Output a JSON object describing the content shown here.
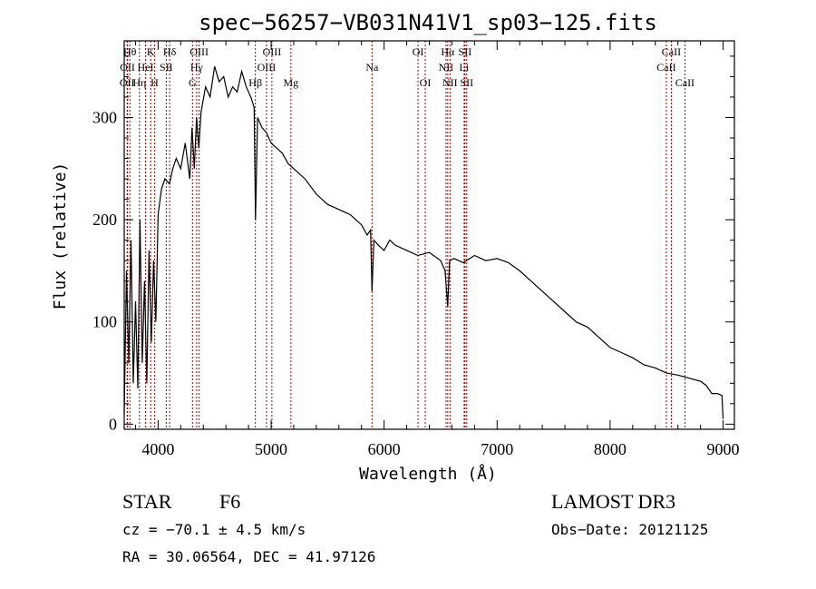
{
  "chart_data": {
    "type": "line",
    "title": "spec−56257−VB031N41V1_sp03−125.fits",
    "xlabel": "Wavelength (Å)",
    "ylabel": "Flux (relative)",
    "xlim": [
      3700,
      9100
    ],
    "ylim": [
      -5,
      375
    ],
    "x_ticks": [
      4000,
      5000,
      6000,
      7000,
      8000,
      9000
    ],
    "y_ticks": [
      0,
      100,
      200,
      300
    ],
    "series": [
      {
        "name": "spectrum",
        "x": [
          3700,
          3720,
          3740,
          3760,
          3780,
          3800,
          3820,
          3840,
          3860,
          3880,
          3900,
          3920,
          3940,
          3960,
          3980,
          4000,
          4030,
          4060,
          4100,
          4130,
          4160,
          4200,
          4240,
          4280,
          4300,
          4320,
          4340,
          4360,
          4380,
          4420,
          4460,
          4500,
          4540,
          4580,
          4620,
          4660,
          4700,
          4740,
          4780,
          4820,
          4850,
          4862,
          4880,
          4920,
          4960,
          5000,
          5050,
          5100,
          5150,
          5200,
          5300,
          5400,
          5500,
          5600,
          5700,
          5800,
          5850,
          5880,
          5893,
          5910,
          5950,
          6000,
          6050,
          6100,
          6200,
          6300,
          6400,
          6500,
          6540,
          6563,
          6580,
          6620,
          6700,
          6800,
          6900,
          7000,
          7100,
          7200,
          7300,
          7400,
          7500,
          7600,
          7700,
          7800,
          7900,
          8000,
          8100,
          8200,
          8300,
          8400,
          8500,
          8600,
          8700,
          8800,
          8850,
          8900,
          8950,
          8990,
          9000
        ],
        "y": [
          10,
          150,
          60,
          180,
          40,
          120,
          35,
          200,
          60,
          140,
          40,
          170,
          80,
          160,
          100,
          205,
          230,
          240,
          235,
          250,
          260,
          250,
          275,
          240,
          290,
          250,
          300,
          270,
          305,
          330,
          320,
          350,
          335,
          340,
          320,
          330,
          325,
          345,
          330,
          320,
          310,
          200,
          300,
          290,
          285,
          275,
          270,
          265,
          255,
          250,
          240,
          225,
          215,
          210,
          205,
          195,
          185,
          190,
          130,
          180,
          175,
          170,
          180,
          175,
          170,
          165,
          168,
          160,
          150,
          115,
          160,
          162,
          158,
          165,
          160,
          162,
          158,
          150,
          140,
          130,
          120,
          110,
          100,
          95,
          85,
          75,
          70,
          65,
          58,
          55,
          50,
          48,
          45,
          42,
          38,
          30,
          30,
          28,
          5
        ]
      }
    ],
    "spectral_lines": [
      {
        "wavelength": 3726,
        "label": "OII",
        "row": 3
      },
      {
        "wavelength": 3729,
        "label": "OII",
        "row": 2
      },
      {
        "wavelength": 3750,
        "label": "Hθ",
        "row": 1
      },
      {
        "wavelength": 3835,
        "label": "Hη",
        "row": 3
      },
      {
        "wavelength": 3889,
        "label": "HeI",
        "row": 2
      },
      {
        "wavelength": 3934,
        "label": "K",
        "row": 1
      },
      {
        "wavelength": 3968,
        "label": "H",
        "row": 3
      },
      {
        "wavelength": 4072,
        "label": "SII",
        "row": 2
      },
      {
        "wavelength": 4102,
        "label": "Hδ",
        "row": 1
      },
      {
        "wavelength": 4304,
        "label": "G",
        "row": 3
      },
      {
        "wavelength": 4341,
        "label": "Hγ",
        "row": 2
      },
      {
        "wavelength": 4363,
        "label": "OIII",
        "row": 1
      },
      {
        "wavelength": 4861,
        "label": "Hβ",
        "row": 3
      },
      {
        "wavelength": 4959,
        "label": "OIII",
        "row": 2
      },
      {
        "wavelength": 5007,
        "label": "OIII",
        "row": 1
      },
      {
        "wavelength": 5175,
        "label": "Mg",
        "row": 3
      },
      {
        "wavelength": 5893,
        "label": "Na",
        "row": 2
      },
      {
        "wavelength": 6300,
        "label": "OI",
        "row": 1
      },
      {
        "wavelength": 6364,
        "label": "OI",
        "row": 3
      },
      {
        "wavelength": 6548,
        "label": "NII",
        "row": 2
      },
      {
        "wavelength": 6563,
        "label": "Hα",
        "row": 1
      },
      {
        "wavelength": 6583,
        "label": "NII",
        "row": 3
      },
      {
        "wavelength": 6708,
        "label": "Li",
        "row": 2
      },
      {
        "wavelength": 6716,
        "label": "SII",
        "row": 1
      },
      {
        "wavelength": 6731,
        "label": "SII",
        "row": 3
      },
      {
        "wavelength": 8498,
        "label": "CaII",
        "row": 2
      },
      {
        "wavelength": 8542,
        "label": "CaII",
        "row": 1
      },
      {
        "wavelength": 8662,
        "label": "CaII",
        "row": 3
      }
    ]
  },
  "info": {
    "object_class": "STAR",
    "subclass": "F6",
    "survey": "LAMOST DR3",
    "redshift": "cz = −70.1 ± 4.5 km/s",
    "obs_date": "Obs−Date: 20121125",
    "coords": "RA =  30.06564, DEC =  41.97126"
  },
  "colors": {
    "spectrum": "#000000",
    "lines": "#aa0000",
    "axis": "#000000"
  }
}
